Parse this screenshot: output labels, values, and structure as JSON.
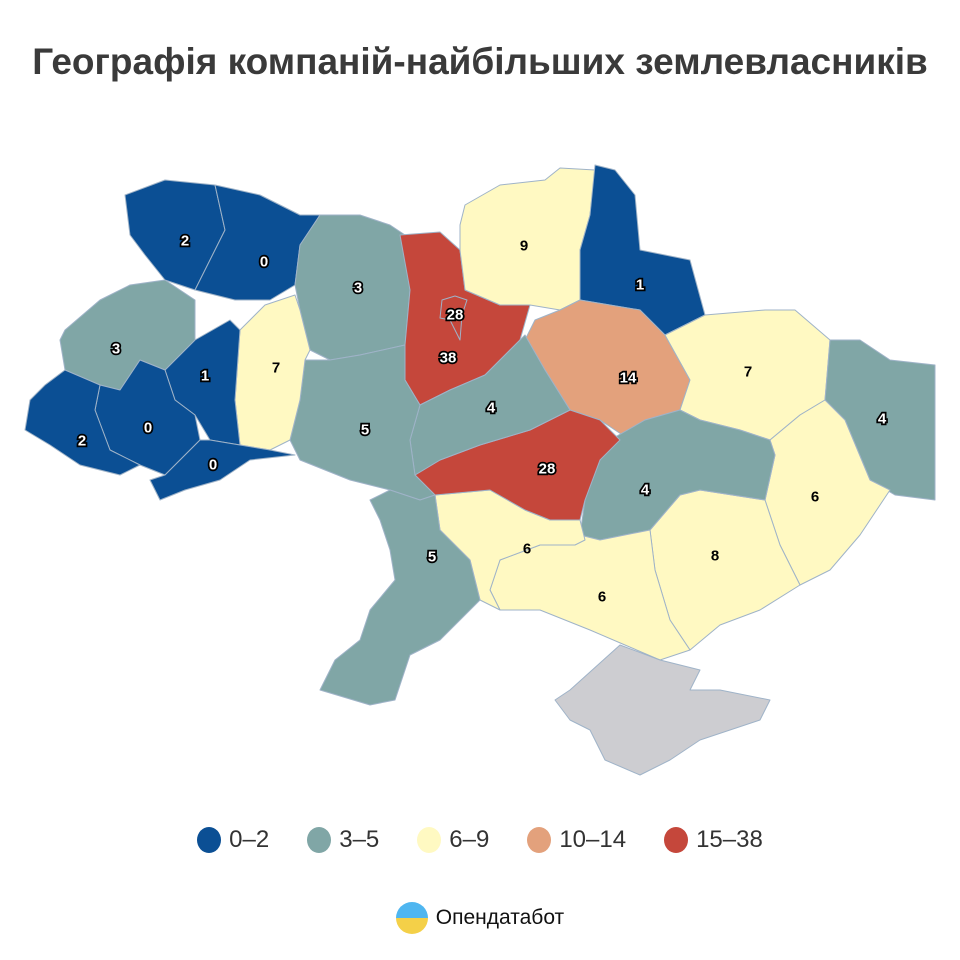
{
  "title": "Географія компаній-найбільших землевласників",
  "colors": {
    "bin_0_2": "#0b4f94",
    "bin_3_5": "#80a6a6",
    "bin_6_9": "#fff9c2",
    "bin_10_14": "#e3a17c",
    "bin_15_38": "#c5473b",
    "no_data": "#cdcdd1"
  },
  "legend": [
    {
      "label": "0–2",
      "color": "#0b4f94"
    },
    {
      "label": "3–5",
      "color": "#80a6a6"
    },
    {
      "label": "6–9",
      "color": "#fff9c2"
    },
    {
      "label": "10–14",
      "color": "#e3a17c"
    },
    {
      "label": "15–38",
      "color": "#c5473b"
    }
  ],
  "regions": [
    {
      "value": "2",
      "bin": "bin_0_2"
    },
    {
      "value": "0",
      "bin": "bin_0_2"
    },
    {
      "value": "3",
      "bin": "bin_3_5"
    },
    {
      "value": "38",
      "bin": "bin_15_38"
    },
    {
      "value": "9",
      "bin": "bin_6_9"
    },
    {
      "value": "1",
      "bin": "bin_0_2"
    },
    {
      "value": "14",
      "bin": "bin_10_14"
    },
    {
      "value": "7",
      "bin": "bin_6_9"
    },
    {
      "value": "4",
      "bin": "bin_3_5"
    },
    {
      "value": "6",
      "bin": "bin_6_9"
    },
    {
      "value": "8",
      "bin": "bin_6_9"
    },
    {
      "value": "4",
      "bin": "bin_3_5"
    },
    {
      "value": "6",
      "bin": "bin_6_9"
    },
    {
      "value": "6",
      "bin": "bin_6_9"
    },
    {
      "value": "28",
      "bin": "bin_15_38"
    },
    {
      "value": "4",
      "bin": "bin_3_5"
    },
    {
      "value": "5",
      "bin": "bin_3_5"
    },
    {
      "value": "5",
      "bin": "bin_3_5"
    },
    {
      "value": "7",
      "bin": "bin_6_9"
    },
    {
      "value": "1",
      "bin": "bin_0_2"
    },
    {
      "value": "3",
      "bin": "bin_3_5"
    },
    {
      "value": "0",
      "bin": "bin_0_2"
    },
    {
      "value": "2",
      "bin": "bin_0_2"
    },
    {
      "value": "0",
      "bin": "bin_0_2"
    },
    {
      "value": "",
      "bin": "no_data"
    },
    {
      "value": "28",
      "bin": "bin_15_38"
    }
  ],
  "logo": {
    "text": "Опендатабот"
  }
}
